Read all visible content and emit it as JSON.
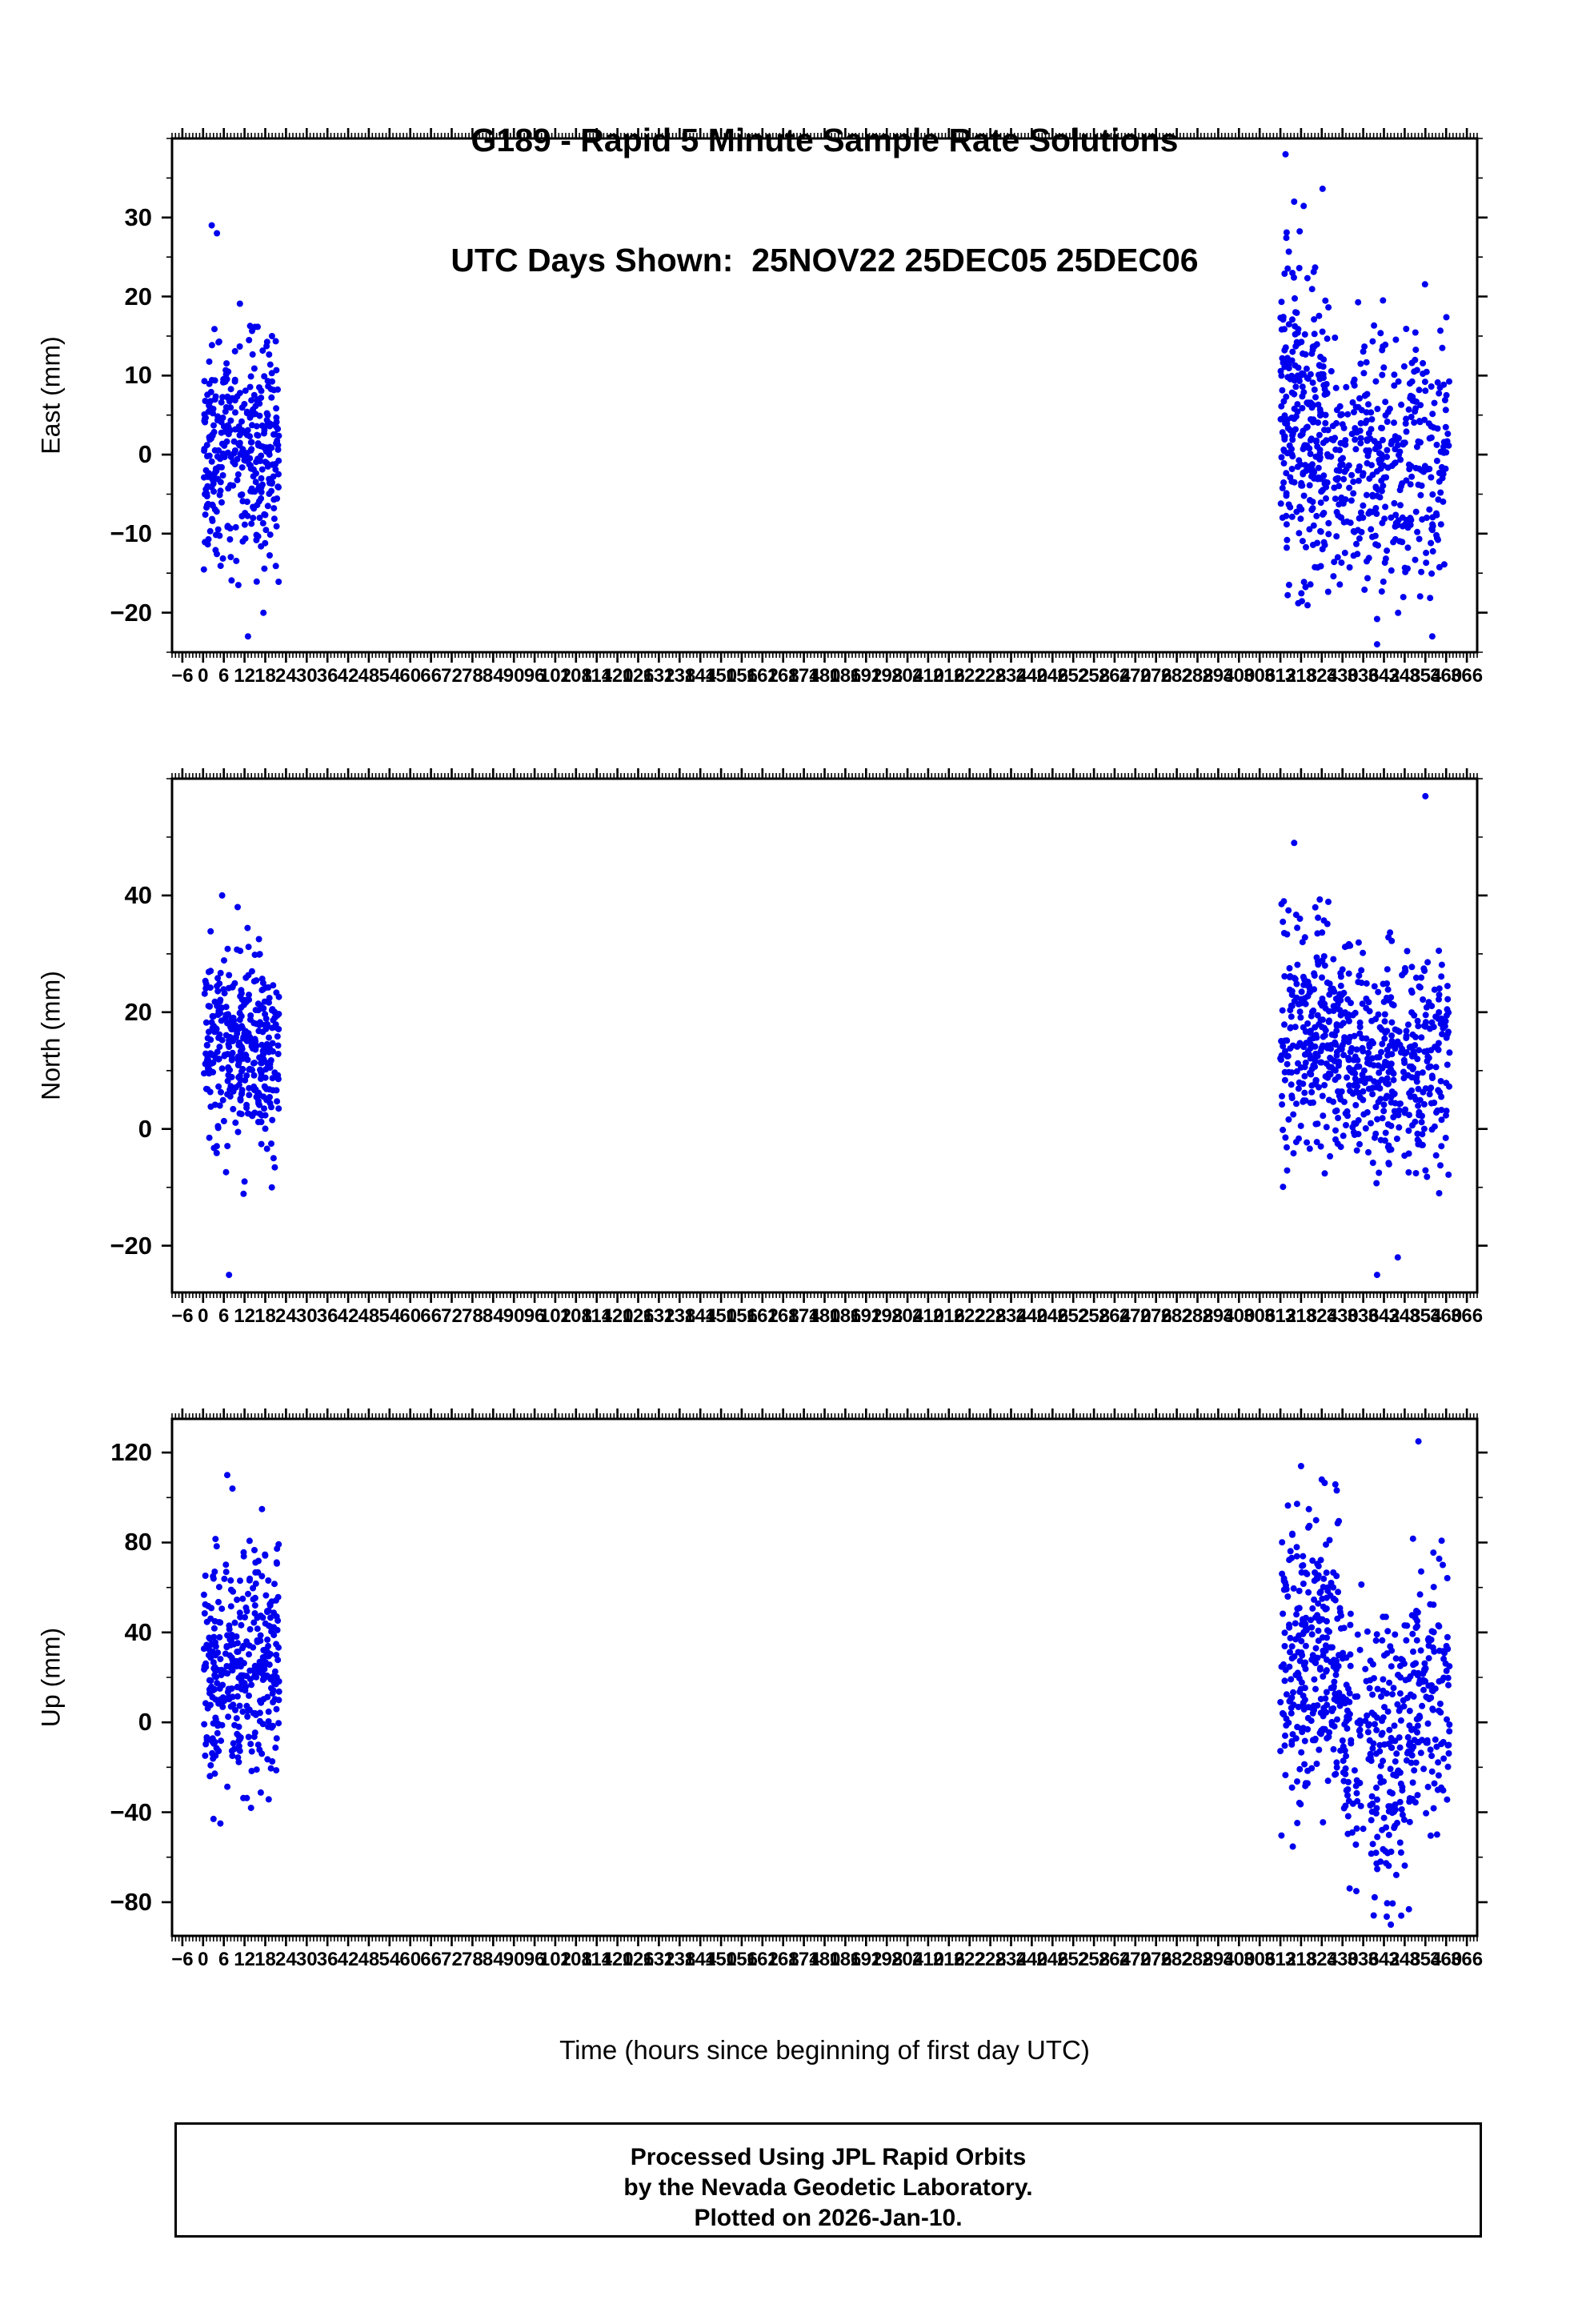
{
  "title": {
    "line1": "G189 - Rapid 5 Minute Sample Rate Solutions",
    "line2": "UTC Days Shown:  25NOV22 25DEC05 25DEC06"
  },
  "xlabel": "Time (hours since beginning of first day UTC)",
  "footer": {
    "line1": "Processed Using JPL Rapid Orbits",
    "line2": "by the Nevada Geodetic Laboratory.",
    "line3": "Plotted on 2026-Jan-10."
  },
  "point_color": "#0000ee",
  "frame_color": "#000000",
  "chart_data": [
    {
      "id": "east",
      "type": "scatter",
      "ylabel": "East (mm)",
      "ylim": [
        -25,
        40
      ],
      "yticks": [
        -20,
        -10,
        0,
        10,
        20,
        30
      ],
      "yminor_step": 5,
      "xlim": [
        -9,
        369
      ],
      "xticks": {
        "start": -6,
        "end": 366,
        "step": 6
      },
      "xminor_step": 1,
      "clusters": [
        {
          "t": [
            0.2,
            22
          ],
          "n": 360,
          "mean": 0,
          "sd": 7,
          "clip": [
            -21,
            26
          ]
        },
        {
          "t": [
            312,
            326
          ],
          "n": 280,
          "mean": 4,
          "sd": 10,
          "clip": [
            -20,
            34
          ]
        },
        {
          "t": [
            326,
            361
          ],
          "n": 380,
          "mean": -1,
          "sd": 8,
          "clip": [
            -22,
            24
          ]
        }
      ],
      "outliers": [
        [
          2.5,
          29
        ],
        [
          4,
          28
        ],
        [
          13,
          -23
        ],
        [
          313.5,
          38
        ],
        [
          316,
          32
        ],
        [
          340,
          -24
        ],
        [
          356,
          -23
        ]
      ]
    },
    {
      "id": "north",
      "type": "scatter",
      "ylabel": "North (mm)",
      "ylim": [
        -28,
        60
      ],
      "yticks": [
        -20,
        0,
        20,
        40
      ],
      "yminor_step": 10,
      "xlim": [
        -9,
        369
      ],
      "xticks": {
        "start": -6,
        "end": 366,
        "step": 6
      },
      "xminor_step": 1,
      "clusters": [
        {
          "t": [
            0.2,
            22
          ],
          "n": 360,
          "mean": 14,
          "sd": 8,
          "clip": [
            -12,
            36
          ]
        },
        {
          "t": [
            312,
            332
          ],
          "n": 300,
          "mean": 15,
          "sd": 10,
          "clip": [
            -10,
            40
          ]
        },
        {
          "t": [
            332,
            361
          ],
          "n": 360,
          "mean": 11,
          "sd": 9,
          "clip": [
            -12,
            34
          ]
        }
      ],
      "outliers": [
        [
          5.5,
          40
        ],
        [
          10,
          38
        ],
        [
          7.5,
          -25
        ],
        [
          12,
          -9
        ],
        [
          313,
          39
        ],
        [
          316,
          49
        ],
        [
          354,
          57
        ],
        [
          340,
          -25
        ],
        [
          346,
          -22
        ],
        [
          358,
          -11
        ]
      ]
    },
    {
      "id": "up",
      "type": "scatter",
      "ylabel": "Up (mm)",
      "ylim": [
        -95,
        135
      ],
      "yticks": [
        -80,
        -40,
        0,
        40,
        80,
        120
      ],
      "yminor_step": 20,
      "xlim": [
        -9,
        369
      ],
      "xticks": {
        "start": -6,
        "end": 366,
        "step": 6
      },
      "xminor_step": 1,
      "clusters": [
        {
          "t": [
            0.2,
            22
          ],
          "n": 360,
          "mean": 25,
          "sd": 25,
          "clip": [
            -45,
            95
          ]
        },
        {
          "t": [
            312,
            330
          ],
          "n": 280,
          "mean": 25,
          "sd": 32,
          "clip": [
            -60,
            108
          ]
        },
        {
          "t": [
            330,
            350
          ],
          "n": 240,
          "mean": -12,
          "sd": 30,
          "clip": [
            -88,
            70
          ]
        },
        {
          "t": [
            350,
            361
          ],
          "n": 140,
          "mean": 18,
          "sd": 30,
          "clip": [
            -55,
            95
          ]
        }
      ],
      "outliers": [
        [
          7,
          110
        ],
        [
          8.5,
          104
        ],
        [
          5,
          -45
        ],
        [
          3,
          -43
        ],
        [
          318,
          114
        ],
        [
          324,
          108
        ],
        [
          352,
          125
        ],
        [
          344,
          -90
        ],
        [
          347,
          -86
        ],
        [
          341,
          -62
        ]
      ]
    }
  ]
}
